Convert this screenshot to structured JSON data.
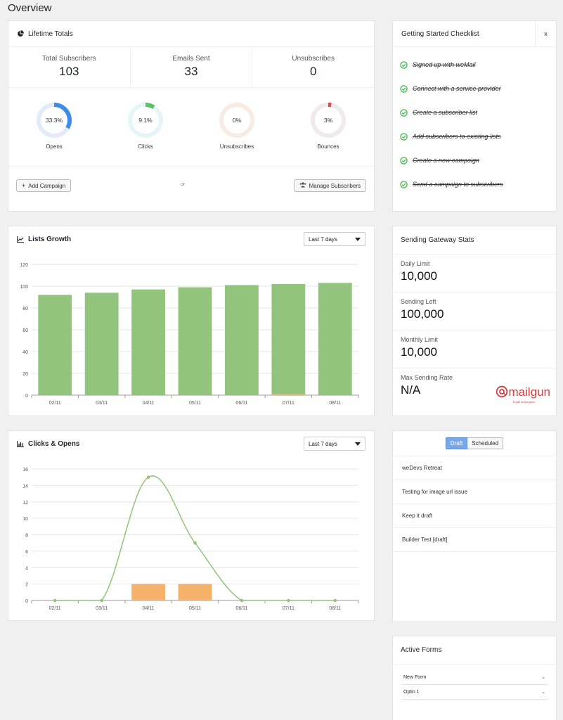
{
  "page": {
    "title": "Overview"
  },
  "lifetime": {
    "title": "Lifetime Totals",
    "totals": [
      {
        "label": "Total Subscribers",
        "value": "103"
      },
      {
        "label": "Emails Sent",
        "value": "33"
      },
      {
        "label": "Unsubscribes",
        "value": "0"
      }
    ],
    "rates": [
      {
        "label": "Opens",
        "value_text": "33.3%",
        "fraction": 0.333,
        "color": "#3b8de8",
        "track": "#e3ebf8"
      },
      {
        "label": "Clicks",
        "value_text": "9.1%",
        "fraction": 0.091,
        "color": "#5cc26a",
        "track": "#e6f6f8"
      },
      {
        "label": "Unsubscribes",
        "value_text": "0%",
        "fraction": 0.0,
        "color": "#e88f54",
        "track": "#f6ece4"
      },
      {
        "label": "Bounces",
        "value_text": "3%",
        "fraction": 0.03,
        "color": "#e04848",
        "track": "#f0eaea"
      }
    ],
    "add_campaign_label": "Add Campaign",
    "or_label": "or",
    "manage_subscribers_label": "Manage Subscribers"
  },
  "checklist": {
    "title": "Getting Started Checklist",
    "close_label": "x",
    "check_color": "#46b450",
    "items": [
      "Signed up with weMail",
      "Connect with a service provider",
      "Create a subscriber list",
      "Add subscribers to existing lists",
      "Create a new campaign",
      "Send a campaign to subscribers"
    ]
  },
  "lists_growth": {
    "title": "Lists Growth",
    "range_label": "Last 7 days",
    "chart_data": {
      "type": "bar",
      "categories": [
        "02/11",
        "03/11",
        "04/11",
        "05/11",
        "06/11",
        "07/11",
        "08/11"
      ],
      "series": [
        {
          "values": [
            92,
            94,
            97,
            99,
            101,
            102,
            103
          ],
          "color": "#93c47d"
        },
        {
          "values": [
            0,
            0,
            0,
            0,
            0,
            1,
            0
          ],
          "color": "#f6b26b"
        }
      ],
      "yticks": [
        0,
        20,
        40,
        60,
        80,
        100,
        120
      ],
      "ylim": [
        0,
        120
      ],
      "grid": true
    }
  },
  "clicks_opens": {
    "title": "Clicks & Opens",
    "range_label": "Last 7 days",
    "chart_data": {
      "type": "line",
      "categories": [
        "02/11",
        "03/11",
        "04/11",
        "05/11",
        "06/11",
        "07/11",
        "08/11"
      ],
      "series": [
        {
          "type": "line",
          "values": [
            0,
            0,
            15,
            7,
            0,
            0,
            0
          ],
          "color": "#93c47d"
        },
        {
          "type": "bar",
          "values": [
            0,
            0,
            2,
            2,
            0,
            0,
            0
          ],
          "color": "#f6b26b"
        }
      ],
      "yticks": [
        0,
        2,
        4,
        6,
        8,
        10,
        12,
        14,
        16
      ],
      "ylim": [
        0,
        16
      ],
      "grid": true
    }
  },
  "gateway": {
    "title": "Sending Gateway Stats",
    "stats": [
      {
        "label": "Daily Limit",
        "value": "10,000"
      },
      {
        "label": "Sending Left",
        "value": "100,000"
      },
      {
        "label": "Monthly Limit",
        "value": "10,000"
      },
      {
        "label": "Max Sending Rate",
        "value": "N/A"
      }
    ],
    "provider_logo": "mailgun",
    "provider_tagline": "Email Automation"
  },
  "campaigns": {
    "tabs": [
      "Draft",
      "Scheduled"
    ],
    "active_tab": "Draft",
    "items": [
      "weDevs Retreat",
      "Testing for image url issue",
      "Keep it draft",
      "Builder Test [draft]"
    ]
  },
  "forms": {
    "title": "Active Forms",
    "items": [
      "New Form",
      "Optin 1"
    ]
  }
}
